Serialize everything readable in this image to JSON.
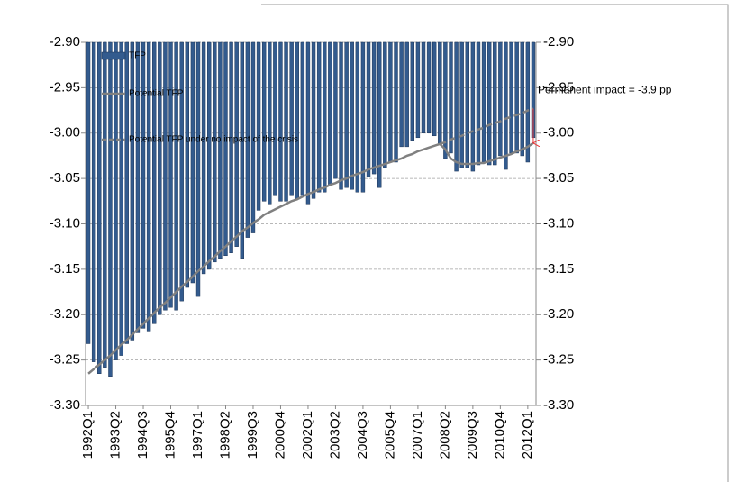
{
  "chart_data": {
    "type": "bar",
    "categories": [
      "1992Q1",
      null,
      null,
      null,
      null,
      "1993Q2",
      null,
      null,
      null,
      null,
      "1994Q3",
      null,
      null,
      null,
      null,
      "1995Q4",
      null,
      null,
      null,
      null,
      "1997Q1",
      null,
      null,
      null,
      null,
      "1998Q2",
      null,
      null,
      null,
      null,
      "1999Q3",
      null,
      null,
      null,
      null,
      "2000Q4",
      null,
      null,
      null,
      null,
      "2002Q1",
      null,
      null,
      null,
      null,
      "2003Q2",
      null,
      null,
      null,
      null,
      "2004Q3",
      null,
      null,
      null,
      null,
      "2005Q4",
      null,
      null,
      null,
      null,
      "2007Q1",
      null,
      null,
      null,
      null,
      "2008Q2",
      null,
      null,
      null,
      null,
      "2009Q3",
      null,
      null,
      null,
      null,
      "2010Q4",
      null,
      null,
      null,
      null,
      "2012Q1",
      null
    ],
    "series": [
      {
        "name": "TFP",
        "type": "bar",
        "color": "#335b8e",
        "values": [
          -3.232,
          -3.252,
          -3.265,
          -3.258,
          -3.268,
          -3.25,
          -3.245,
          -3.232,
          -3.228,
          -3.22,
          -3.215,
          -3.218,
          -3.21,
          -3.2,
          -3.195,
          -3.192,
          -3.195,
          -3.185,
          -3.17,
          -3.165,
          -3.18,
          -3.155,
          -3.15,
          -3.142,
          -3.138,
          -3.135,
          -3.132,
          -3.125,
          -3.138,
          -3.115,
          -3.11,
          -3.085,
          -3.075,
          -3.078,
          -3.068,
          -3.075,
          -3.075,
          -3.068,
          -3.072,
          -3.068,
          -3.078,
          -3.072,
          -3.065,
          -3.065,
          -3.058,
          -3.05,
          -3.062,
          -3.06,
          -3.062,
          -3.065,
          -3.065,
          -3.048,
          -3.045,
          -3.06,
          -3.038,
          -3.032,
          -3.032,
          -3.015,
          -3.015,
          -3.008,
          -3.005,
          -3.0,
          -3.0,
          -3.003,
          -3.012,
          -3.028,
          -3.022,
          -3.042,
          -3.038,
          -3.038,
          -3.042,
          -3.035,
          -3.032,
          -3.035,
          -3.035,
          -3.025,
          -3.04,
          -3.022,
          -3.022,
          -3.025,
          -3.032,
          -3.005
        ]
      },
      {
        "name": "Potential TFP",
        "type": "line",
        "color": "#808080",
        "values": [
          -3.265,
          -3.26,
          -3.255,
          -3.25,
          -3.245,
          -3.239,
          -3.233,
          -3.228,
          -3.222,
          -3.216,
          -3.21,
          -3.204,
          -3.198,
          -3.192,
          -3.187,
          -3.181,
          -3.175,
          -3.169,
          -3.164,
          -3.158,
          -3.152,
          -3.147,
          -3.141,
          -3.136,
          -3.13,
          -3.125,
          -3.119,
          -3.114,
          -3.108,
          -3.104,
          -3.099,
          -3.095,
          -3.09,
          -3.087,
          -3.084,
          -3.081,
          -3.078,
          -3.075,
          -3.073,
          -3.07,
          -3.067,
          -3.065,
          -3.062,
          -3.06,
          -3.057,
          -3.055,
          -3.052,
          -3.05,
          -3.047,
          -3.045,
          -3.043,
          -3.04,
          -3.038,
          -3.036,
          -3.034,
          -3.032,
          -3.03,
          -3.028,
          -3.025,
          -3.023,
          -3.02,
          -3.018,
          -3.016,
          -3.014,
          -3.012,
          -3.018,
          -3.028,
          -3.032,
          -3.034,
          -3.034,
          -3.034,
          -3.033,
          -3.033,
          -3.031,
          -3.029,
          -3.027,
          -3.025,
          -3.023,
          -3.02,
          -3.018,
          -3.015,
          -3.011
        ]
      },
      {
        "name": "Potential TFP under no impact of the crisis",
        "type": "line",
        "dashed": true,
        "color": "#808080",
        "values": [
          null,
          null,
          null,
          null,
          null,
          null,
          null,
          null,
          null,
          null,
          null,
          null,
          null,
          null,
          null,
          null,
          null,
          null,
          null,
          null,
          null,
          null,
          null,
          null,
          null,
          null,
          null,
          null,
          null,
          null,
          null,
          null,
          null,
          null,
          null,
          null,
          null,
          null,
          null,
          null,
          null,
          null,
          null,
          null,
          null,
          null,
          null,
          null,
          null,
          null,
          null,
          null,
          null,
          null,
          null,
          null,
          null,
          null,
          null,
          null,
          null,
          null,
          null,
          null,
          -3.012,
          -3.01,
          -3.007,
          -3.005,
          -3.003,
          -3.0,
          -2.998,
          -2.996,
          -2.994,
          -2.991,
          -2.989,
          -2.987,
          -2.984,
          -2.982,
          -2.98,
          -2.978,
          -2.975,
          -2.973
        ]
      }
    ],
    "ylim": [
      -3.3,
      -2.9
    ],
    "yticks": [
      {
        "value": -2.9,
        "label": "-2.90"
      },
      -2.95,
      {
        "value": -3.0,
        "label": "-3.00"
      },
      -3.05,
      {
        "value": -3.1,
        "label": "-3.10"
      },
      -3.15,
      {
        "value": -3.2,
        "label": "-3.20"
      },
      -3.25,
      {
        "value": -3.3,
        "label": "-3.30"
      }
    ],
    "y2lim": [
      -3.3,
      -2.9
    ],
    "y2ticks": [
      {
        "value": -2.9,
        "label": "-2.90"
      },
      -2.95,
      {
        "value": -3.0,
        "label": "-3.00"
      },
      -3.05,
      {
        "value": -3.1,
        "label": "-3.10"
      },
      -3.15,
      {
        "value": -3.2,
        "label": "-3.20"
      },
      -3.25,
      {
        "value": -3.3,
        "label": "-3.30"
      }
    ],
    "grid": true,
    "legend": "upper-left",
    "annotation": {
      "text": "Permanent impact = -3.9 pp",
      "color": "#e8393a"
    }
  }
}
